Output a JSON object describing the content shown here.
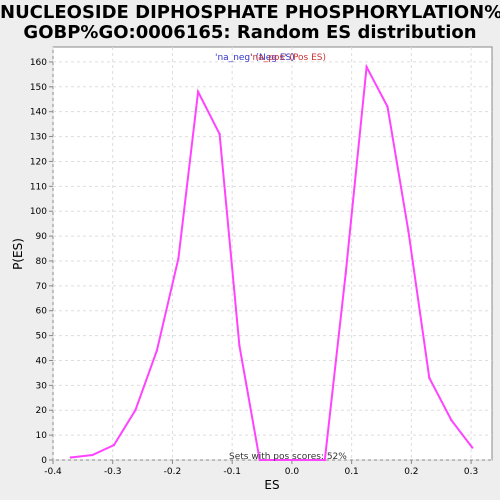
{
  "chart_data": {
    "type": "line",
    "title_line1": "NUCLEOSIDE DIPHOSPHATE PHOSPHORYLATION%",
    "title_line2": "GOBP%GO:0006165: Random ES distribution",
    "xlabel": "ES",
    "ylabel": "P(ES)",
    "xlim": [
      -0.4,
      0.335
    ],
    "ylim": [
      0,
      166
    ],
    "xticks": [
      -0.4,
      -0.3,
      -0.2,
      -0.1,
      0.0,
      0.1,
      0.2,
      0.3
    ],
    "xtick_labels": [
      "-0.4",
      "-0.3",
      "-0.2",
      "-0.1",
      "0.0",
      "0.1",
      "0.2",
      "0.3"
    ],
    "yticks": [
      0,
      10,
      20,
      30,
      40,
      50,
      60,
      70,
      80,
      90,
      100,
      110,
      120,
      130,
      140,
      150,
      160
    ],
    "ytick_labels": [
      "0",
      "10",
      "20",
      "30",
      "40",
      "50",
      "60",
      "70",
      "80",
      "90",
      "100",
      "110",
      "120",
      "130",
      "140",
      "150",
      "160"
    ],
    "grid": true,
    "legend": {
      "neg_label": "'na_neg' (Neg ES)",
      "pos_label": "'na_pos' (Pos ES)",
      "placement": "top-center",
      "neg_color": "#3333cc",
      "pos_color": "#cc3333"
    },
    "annotation": "Sets with pos scores: 52%",
    "line_color": "#ff44ff",
    "series": [
      {
        "name": "P(ES)",
        "x": [
          -0.37,
          -0.334,
          -0.298,
          -0.262,
          -0.226,
          -0.19,
          -0.157,
          -0.121,
          -0.088,
          -0.054,
          0.055,
          0.09,
          0.125,
          0.16,
          0.195,
          0.23,
          0.267,
          0.302
        ],
        "y": [
          1,
          2,
          6,
          20,
          44,
          81,
          148,
          131,
          46,
          0,
          0,
          75,
          158,
          142,
          92,
          33,
          16,
          5
        ]
      }
    ]
  }
}
